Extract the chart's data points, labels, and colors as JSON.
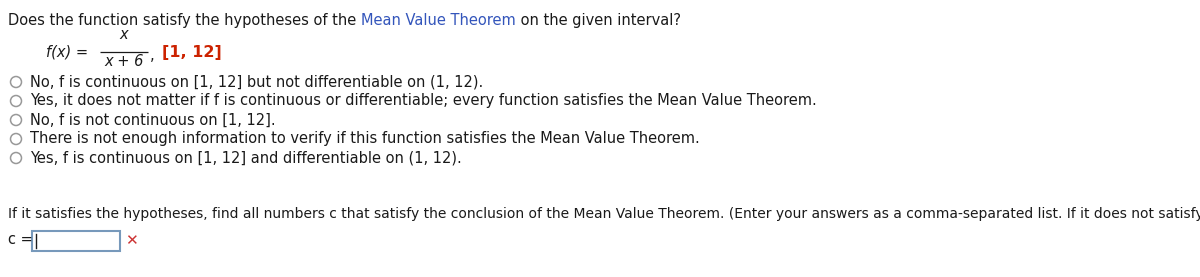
{
  "title_text1": "Does the function satisfy the hypotheses of the ",
  "title_link": "Mean Value Theorem",
  "title_text2": " on the given interval?",
  "fx_italic": "f(x) =",
  "numerator": "x",
  "denominator": "x + 6",
  "comma": ",",
  "interval": "[1, 12]",
  "options": [
    "No, f is continuous on [1, 12] but not differentiable on (1, 12).",
    "Yes, it does not matter if f is continuous or differentiable; every function satisfies the Mean Value Theorem.",
    "No, f is not continuous on [1, 12].",
    "There is not enough information to verify if this function satisfies the Mean Value Theorem.",
    "Yes, f is continuous on [1, 12] and differentiable on (1, 12)."
  ],
  "footer_text": "If it satisfies the hypotheses, find all numbers c that satisfy the conclusion of the Mean Value Theorem. (Enter your answers as a comma-separated list. If it does not satisfy the hypotheses, enter DNE).",
  "c_label": "c =",
  "bg_color": "#ffffff",
  "text_color": "#1a1a1a",
  "link_color": "#3355bb",
  "interval_color": "#cc2200",
  "radio_color": "#999999",
  "box_edge_color": "#7799bb",
  "cross_color": "#cc3333",
  "font_size": 10.5,
  "footer_font_size": 10.0,
  "fig_width": 12.0,
  "fig_height": 2.77,
  "dpi": 100
}
